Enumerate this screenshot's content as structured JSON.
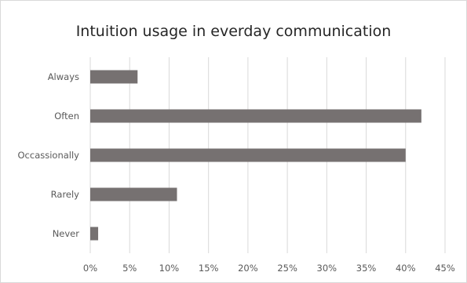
{
  "chart_data": {
    "type": "bar",
    "orientation": "horizontal",
    "title": "Intuition usage in everday communication",
    "xlabel": "",
    "ylabel": "",
    "categories": [
      "Always",
      "Often",
      "Occassionally",
      "Rarely",
      "Never"
    ],
    "values": [
      6,
      42,
      40,
      11,
      1
    ],
    "xlim": [
      0,
      45
    ],
    "xticks": [
      "0%",
      "5%",
      "10%",
      "15%",
      "20%",
      "25%",
      "30%",
      "35%",
      "40%",
      "45%"
    ],
    "bar_color": "#767171",
    "grid": true,
    "legend": false
  }
}
